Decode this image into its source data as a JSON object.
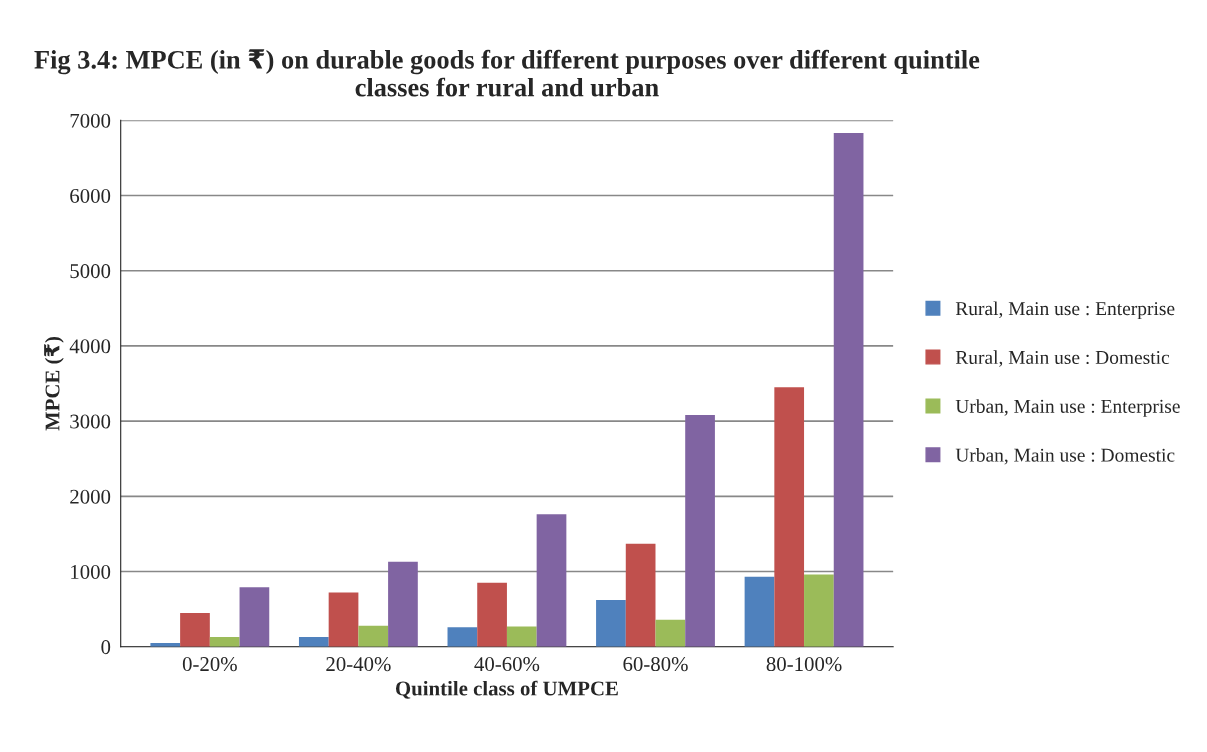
{
  "chart_data": {
    "type": "bar",
    "title": "Fig 3.4: MPCE (in ₹) on durable goods for different purposes over different quintile classes for rural and urban",
    "xlabel": "Quintile class of UMPCE",
    "ylabel": "MPCE (₹)",
    "categories": [
      "0-20%",
      "20-40%",
      "40-60%",
      "60-80%",
      "80-100%"
    ],
    "series": [
      {
        "name": "Rural, Main use : Enterprise",
        "color": "#4f81bd",
        "values": [
          50,
          130,
          260,
          620,
          930
        ]
      },
      {
        "name": "Rural, Main use : Domestic",
        "color": "#c0504d",
        "values": [
          450,
          720,
          850,
          1370,
          3450
        ]
      },
      {
        "name": "Urban, Main use : Enterprise",
        "color": "#9bbb59",
        "values": [
          130,
          280,
          270,
          360,
          960
        ]
      },
      {
        "name": "Urban, Main use : Domestic",
        "color": "#8064a2",
        "values": [
          790,
          1130,
          1760,
          3080,
          6830
        ]
      }
    ],
    "ylim": [
      0,
      7000
    ],
    "yticks": [
      0,
      1000,
      2000,
      3000,
      4000,
      5000,
      6000,
      7000
    ],
    "grid": "y",
    "legend": "right"
  }
}
